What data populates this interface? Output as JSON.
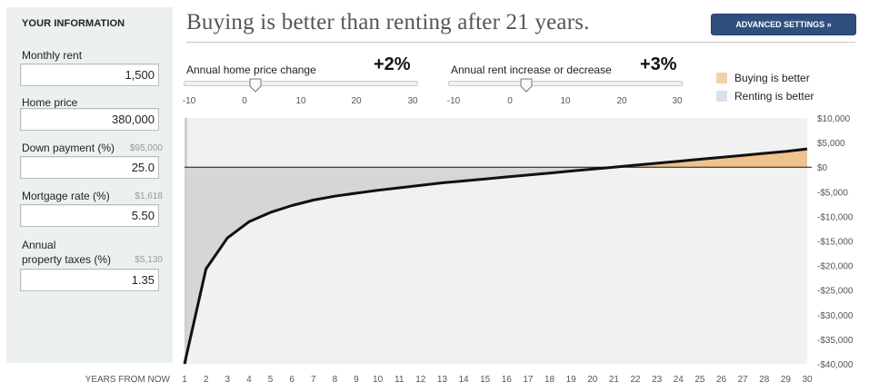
{
  "left_panel": {
    "title": "YOUR INFORMATION",
    "fields": [
      {
        "label": "Monthly rent",
        "hint": "",
        "value": "1,500"
      },
      {
        "label": "Home price",
        "hint": "",
        "value": "380,000"
      },
      {
        "label": "Down payment (%)",
        "hint": "$95,000",
        "value": "25.0"
      },
      {
        "label": "Mortgage rate (%)",
        "hint": "$1,618",
        "value": "5.50"
      },
      {
        "label_line1": "Annual",
        "label": "property taxes (%)",
        "hint": "$5,130",
        "value": "1.35"
      }
    ]
  },
  "headline": "Buying is better than renting after 21 years.",
  "advanced_button": "ADVANCED SETTINGS »",
  "sliders": [
    {
      "label": "Annual home price change",
      "value_text": "+2%",
      "value": 2,
      "min": -10,
      "max": 30,
      "ticks": [
        "-10",
        "0",
        "10",
        "20",
        "30"
      ]
    },
    {
      "label": "Annual rent increase or decrease",
      "value_text": "+3%",
      "value": 3,
      "min": -10,
      "max": 30,
      "ticks": [
        "-10",
        "0",
        "10",
        "20",
        "30"
      ]
    }
  ],
  "legend": {
    "buying": {
      "label": "Buying is better",
      "color": "#f0d2aa"
    },
    "renting": {
      "label": "Renting is better",
      "color": "#d8e1ec"
    }
  },
  "chart_data": {
    "type": "area",
    "xlabel": "YEARS FROM NOW",
    "x": [
      1,
      2,
      3,
      4,
      5,
      6,
      7,
      8,
      9,
      10,
      11,
      12,
      13,
      14,
      15,
      16,
      17,
      18,
      19,
      20,
      21,
      22,
      23,
      24,
      25,
      26,
      27,
      28,
      29,
      30
    ],
    "x_tick_labels": [
      "1",
      "2",
      "3",
      "4",
      "5",
      "6",
      "7",
      "8",
      "9",
      "10",
      "11",
      "12",
      "13",
      "14",
      "15",
      "16",
      "17",
      "18",
      "19",
      "20",
      "21",
      "22",
      "23",
      "24",
      "25",
      "26",
      "27",
      "28",
      "29",
      "30"
    ],
    "series": [
      {
        "values": [
          -40000,
          -20700,
          -14400,
          -11100,
          -9200,
          -7800,
          -6700,
          -5900,
          -5300,
          -4700,
          -4200,
          -3700,
          -3200,
          -2800,
          -2400,
          -2000,
          -1600,
          -1200,
          -800,
          -400,
          0,
          400,
          800,
          1200,
          1600,
          2000,
          2400,
          2800,
          3200,
          3700
        ]
      }
    ],
    "ylim": [
      -40000,
      10000
    ],
    "y_ticks": [
      10000,
      5000,
      0,
      -5000,
      -10000,
      -15000,
      -20000,
      -25000,
      -30000,
      -35000,
      -40000
    ],
    "y_tick_labels": [
      "$10,000",
      "$5,000",
      "$0",
      "-$5,000",
      "-$10,000",
      "-$15,000",
      "-$20,000",
      "-$25,000",
      "-$30,000",
      "-$35,000",
      "-$40,000"
    ],
    "colors": {
      "positive_fill": "#f0c28c",
      "negative_fill": "#d6d6d6",
      "plot_bg": "#f1f1f1",
      "line": "#111111"
    },
    "legend_position": "top-right",
    "grid": false
  }
}
